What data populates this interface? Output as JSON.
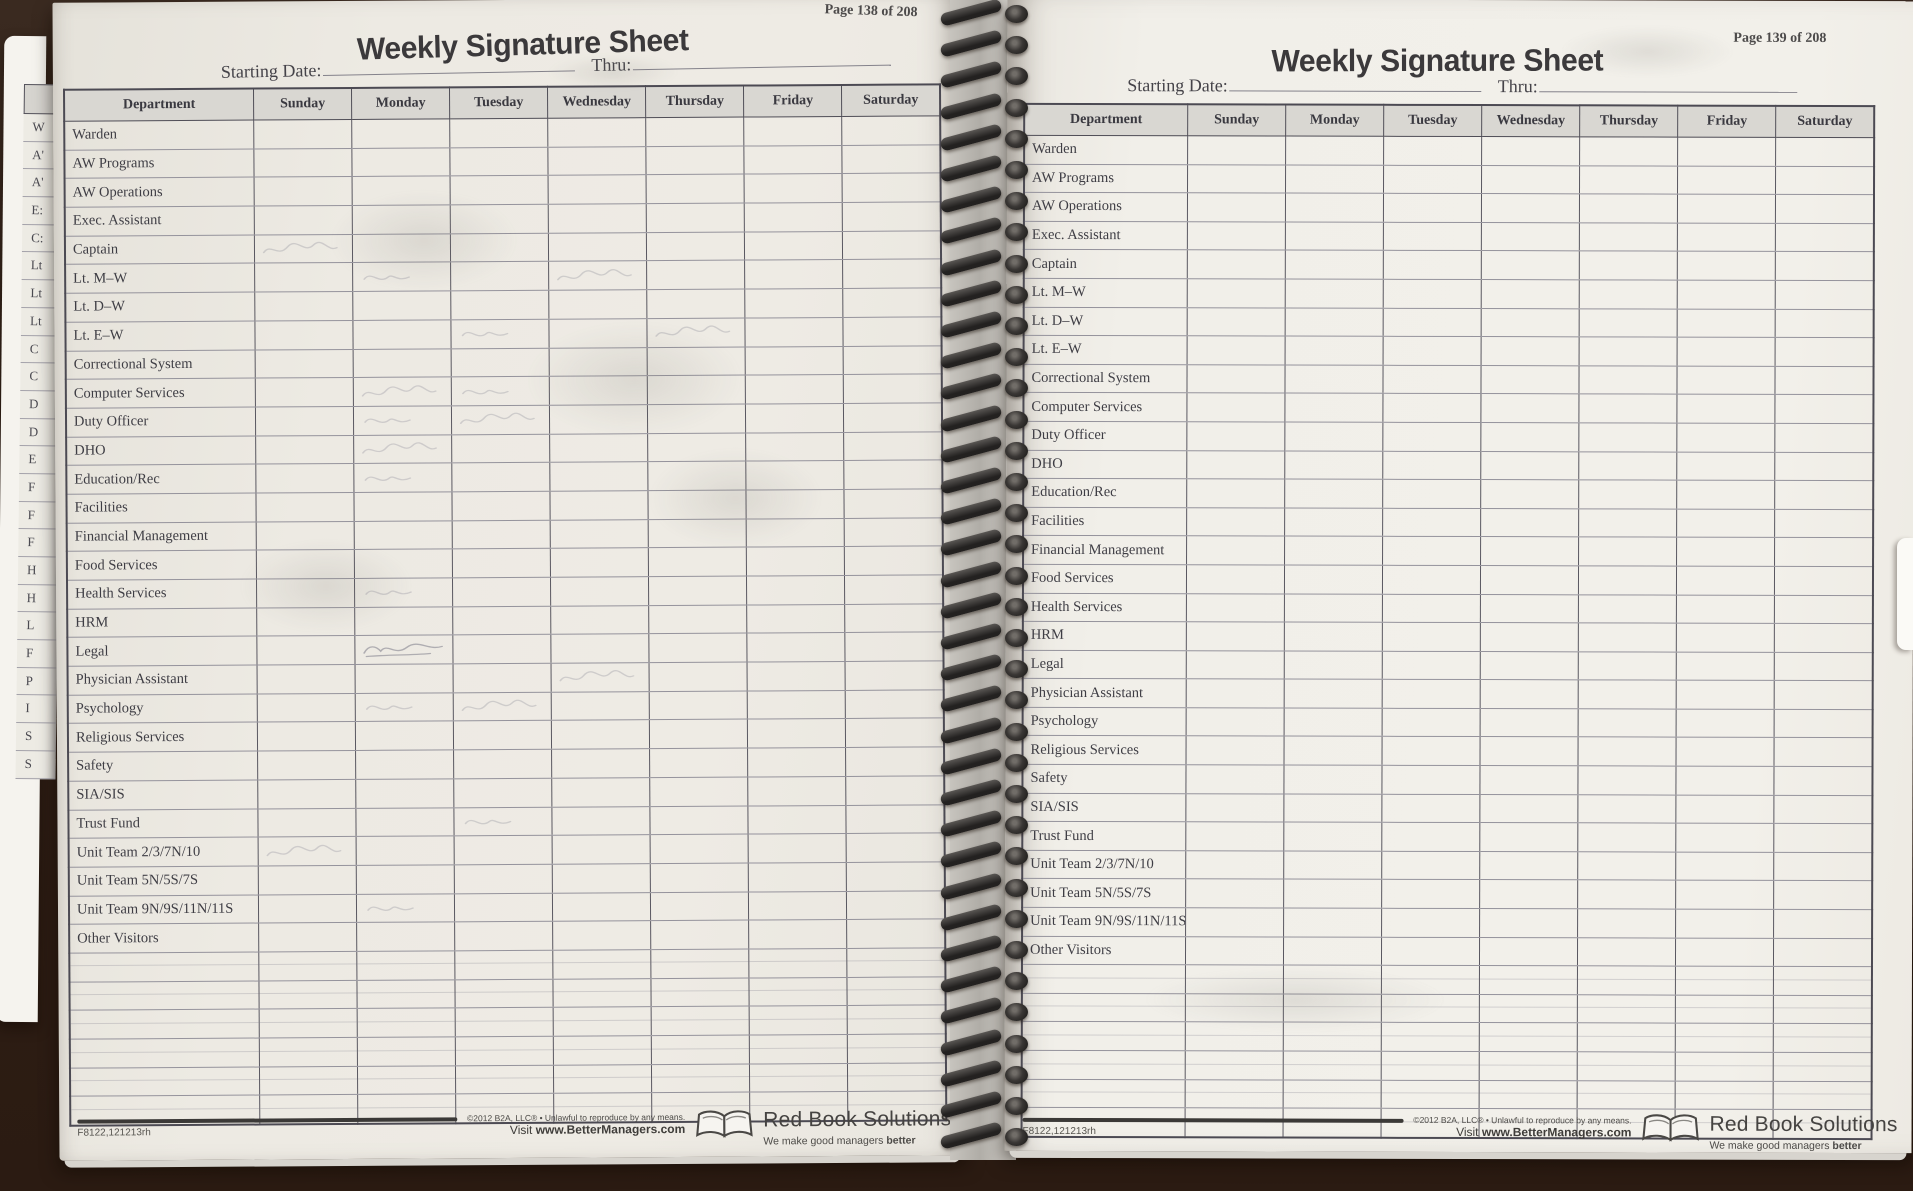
{
  "book": {
    "form_title": "Weekly Signature Sheet",
    "starting_date_label": "Starting Date:",
    "thru_label": "Thru:",
    "columns": [
      "Department",
      "Sunday",
      "Monday",
      "Tuesday",
      "Wednesday",
      "Thursday",
      "Friday",
      "Saturday"
    ],
    "departments": [
      "Warden",
      "AW Programs",
      "AW Operations",
      "Exec. Assistant",
      "Captain",
      "Lt. M–W",
      "Lt. D–W",
      "Lt. E–W",
      "Correctional System",
      "Computer Services",
      "Duty Officer",
      "DHO",
      "Education/Rec",
      "Facilities",
      "Financial Management",
      "Food Services",
      "Health Services",
      "HRM",
      "Legal",
      "Physician Assistant",
      "Psychology",
      "Religious Services",
      "Safety",
      "SIA/SIS",
      "Trust Fund",
      "Unit Team 2/3/7N/10",
      "Unit Team 5N/5S/7S",
      "Unit Team 9N/9S/11N/11S",
      "Other Visitors"
    ],
    "blank_row_count": 6,
    "left_page": {
      "page_label": "Page 138 of 208",
      "form_code": "F8122,121213rh"
    },
    "right_page": {
      "page_label": "Page 139 of 208",
      "form_code": "F8122,121213rh"
    },
    "footer": {
      "copyright": "©2012 B2A, LLC® • Unlawful to reproduce by any means.",
      "visit_prefix": "Visit ",
      "visit_url": "www.BetterManagers.com",
      "brand": "Red Book Solutions",
      "tagline_prefix": "We make good managers ",
      "tagline_emphasis": "better",
      "logo_icon": "open-book-icon"
    },
    "edge_strip_letters": [
      "W",
      "A'",
      "A'",
      "E:",
      "C:",
      "Lt",
      "Lt",
      "Lt",
      "C",
      "C",
      "D",
      "D",
      "E",
      "F",
      "F",
      "F",
      "H",
      "H",
      "L",
      "F",
      "P",
      "I",
      "S",
      "S"
    ],
    "pencil_marks": {
      "description": "faint illegible pencil signatures on left page",
      "cells": [
        {
          "row": 5,
          "col": 1,
          "variant": 1
        },
        {
          "row": 6,
          "col": 2,
          "variant": 2
        },
        {
          "row": 6,
          "col": 4,
          "variant": 1
        },
        {
          "row": 8,
          "col": 3,
          "variant": 2
        },
        {
          "row": 8,
          "col": 5,
          "variant": 1
        },
        {
          "row": 10,
          "col": 2,
          "variant": 1
        },
        {
          "row": 10,
          "col": 3,
          "variant": 2
        },
        {
          "row": 11,
          "col": 2,
          "variant": 2
        },
        {
          "row": 11,
          "col": 3,
          "variant": 1
        },
        {
          "row": 12,
          "col": 2,
          "variant": 1
        },
        {
          "row": 13,
          "col": 2,
          "variant": 2
        },
        {
          "row": 17,
          "col": 2,
          "variant": 2
        },
        {
          "row": 19,
          "col": 2,
          "variant": 3
        },
        {
          "row": 20,
          "col": 4,
          "variant": 1
        },
        {
          "row": 21,
          "col": 2,
          "variant": 2
        },
        {
          "row": 21,
          "col": 3,
          "variant": 1
        },
        {
          "row": 25,
          "col": 3,
          "variant": 2
        },
        {
          "row": 26,
          "col": 1,
          "variant": 1
        },
        {
          "row": 28,
          "col": 2,
          "variant": 2
        }
      ]
    },
    "colors": {
      "desk": "#2e1e15",
      "paper_left": "#edeae3",
      "paper_right": "#f1efe9",
      "header_fill": "#d9d7d2",
      "grid_dark": "#55535e",
      "grid_light": "#95939c",
      "ink": "#3e3c42",
      "coil": "#2c2a28"
    }
  }
}
